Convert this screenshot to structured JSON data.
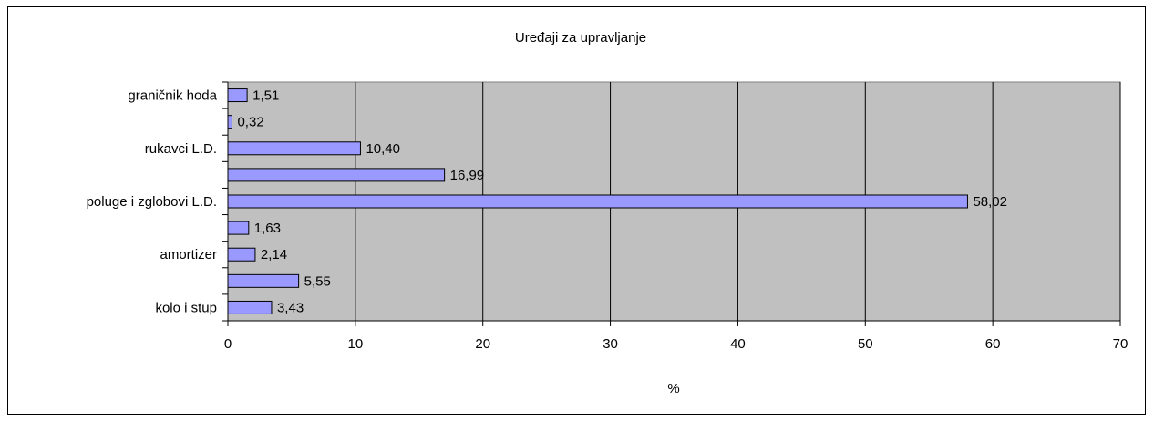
{
  "chart_data": {
    "type": "bar",
    "orientation": "horizontal",
    "title": "Uređaji za upravljanje",
    "xlabel": "%",
    "ylabel": "",
    "xlim": [
      0,
      70
    ],
    "xticks": [
      0,
      10,
      20,
      30,
      40,
      50,
      60,
      70
    ],
    "categories": [
      "kolo i stup",
      "",
      "amortizer",
      "",
      "poluge i zglobovi L.D.",
      "",
      "rukavci L.D.",
      "",
      "graničnik hoda"
    ],
    "values": [
      3.43,
      5.55,
      2.14,
      1.63,
      58.02,
      16.99,
      10.4,
      0.32,
      1.51
    ],
    "value_labels": [
      "3,43",
      "5,55",
      "2,14",
      "1,63",
      "58,02",
      "16,99",
      "10,40",
      "0,32",
      "1,51"
    ],
    "grid": "vertical",
    "legend": "none",
    "colors": {
      "bar_fill": "#9999ff",
      "plot_background": "#c0c0c0",
      "gridline": "#000000"
    }
  }
}
